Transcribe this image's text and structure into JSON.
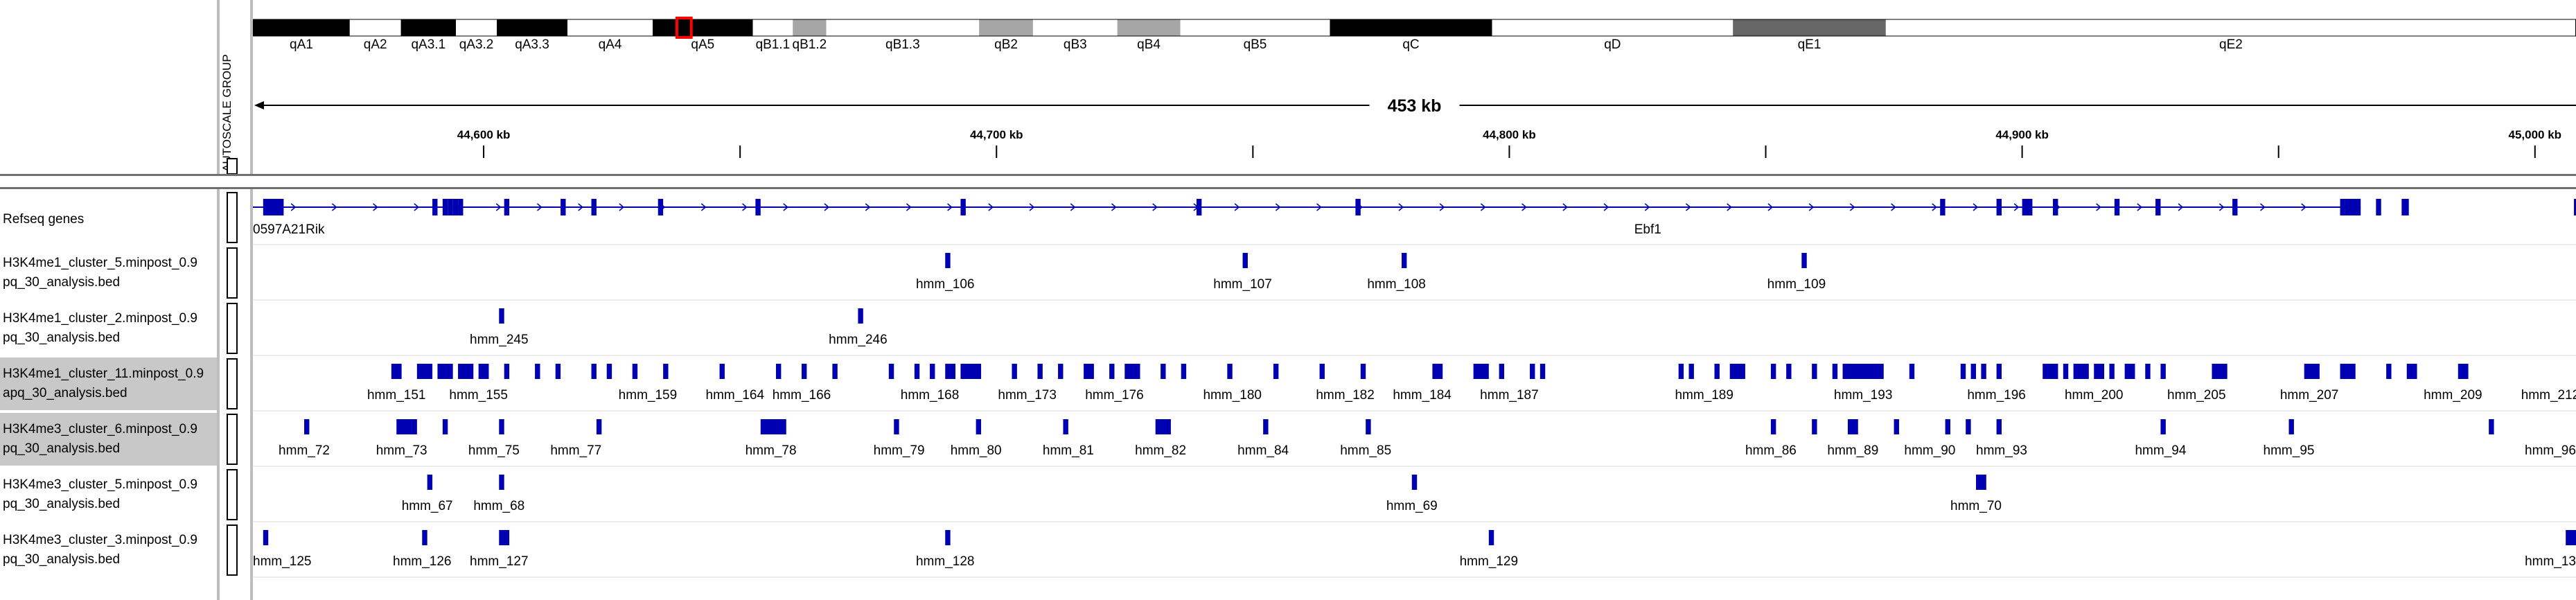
{
  "ideogram": {
    "bands": [
      {
        "name": "qA1",
        "start": 0,
        "end": 4.17,
        "stain": "black"
      },
      {
        "name": "qA2",
        "start": 4.17,
        "end": 6.37,
        "stain": "white"
      },
      {
        "name": "qA3.1",
        "start": 6.37,
        "end": 8.74,
        "stain": "black"
      },
      {
        "name": "qA3.2",
        "start": 8.74,
        "end": 10.5,
        "stain": "white"
      },
      {
        "name": "qA3.3",
        "start": 10.5,
        "end": 13.54,
        "stain": "black"
      },
      {
        "name": "qA4",
        "start": 13.54,
        "end": 17.21,
        "stain": "white"
      },
      {
        "name": "qA5",
        "start": 17.21,
        "end": 21.52,
        "stain": "black"
      },
      {
        "name": "qB1.1",
        "start": 21.52,
        "end": 23.24,
        "stain": "white"
      },
      {
        "name": "qB1.2",
        "start": 23.24,
        "end": 24.68,
        "stain": "gray"
      },
      {
        "name": "qB1.3",
        "start": 24.68,
        "end": 31.26,
        "stain": "white"
      },
      {
        "name": "qB2",
        "start": 31.26,
        "end": 33.58,
        "stain": "gray"
      },
      {
        "name": "qB3",
        "start": 33.58,
        "end": 37.21,
        "stain": "white"
      },
      {
        "name": "qB4",
        "start": 37.21,
        "end": 39.92,
        "stain": "gray"
      },
      {
        "name": "qB5",
        "start": 39.92,
        "end": 46.36,
        "stain": "white"
      },
      {
        "name": "qC",
        "start": 46.36,
        "end": 53.34,
        "stain": "black"
      },
      {
        "name": "qD",
        "start": 53.34,
        "end": 63.71,
        "stain": "white"
      },
      {
        "name": "qE1",
        "start": 63.71,
        "end": 70.29,
        "stain": "darkgray"
      },
      {
        "name": "qE2",
        "start": 70.29,
        "end": 100,
        "stain": "white"
      }
    ],
    "current_view": {
      "start": 18.25,
      "end": 18.87
    }
  },
  "ruler": {
    "span_label": "453 kb",
    "view_start_kb": 44555,
    "view_end_kb": 45008,
    "tick_labels": [
      {
        "kb": 44600,
        "label": "44,600 kb"
      },
      {
        "kb": 44700,
        "label": "44,700 kb"
      },
      {
        "kb": 44800,
        "label": "44,800 kb"
      },
      {
        "kb": 44900,
        "label": "44,900 kb"
      },
      {
        "kb": 45000,
        "label": "45,000 kb"
      }
    ],
    "minor_ticks_kb": [
      44650,
      44750,
      44850,
      44950
    ]
  },
  "attribute_header": {
    "label": "AUTOSCALE GROUP"
  },
  "tracks": [
    {
      "name": "Refseq genes",
      "type": "gene",
      "selected": false,
      "gene_labels": [
        {
          "text": "0597A21Rik",
          "pos": 0
        },
        {
          "text": "Ebf1",
          "pos": 44827
        }
      ],
      "line_start": 44555,
      "line_end": 44966,
      "exons": [
        [
          44557,
          44561
        ],
        [
          44590,
          44591
        ],
        [
          44592,
          44593
        ],
        [
          44593,
          44594
        ],
        [
          44594,
          44595
        ],
        [
          44595,
          44596
        ],
        [
          44604,
          44605
        ],
        [
          44615,
          44616
        ],
        [
          44621,
          44622
        ],
        [
          44634,
          44635
        ],
        [
          44653,
          44654
        ],
        [
          44693,
          44694
        ],
        [
          44739,
          44740
        ],
        [
          44770,
          44771
        ],
        [
          44884,
          44885
        ],
        [
          44895,
          44896
        ],
        [
          44900,
          44901
        ],
        [
          44901,
          44902
        ],
        [
          44906,
          44907
        ],
        [
          44918,
          44919
        ],
        [
          44926,
          44927
        ],
        [
          44941,
          44942
        ],
        [
          44962,
          44963
        ],
        [
          44964,
          44965
        ],
        [
          44965,
          44966
        ],
        [
          44969,
          44970
        ],
        [
          44974,
          44975
        ],
        [
          44974.6,
          44975.4
        ],
        [
          45007.6,
          45008
        ]
      ],
      "thick": [
        [
          44963,
          44966
        ]
      ]
    },
    {
      "name": "H3K4me1_cluster_5.minpost_0.9\npq_30_analysis.bed",
      "label_line1": "H3K4me1_cluster_5.minpost_0.9",
      "label_line2": "pq_30_analysis.bed",
      "type": "bed",
      "selected": false,
      "features": [
        [
          44690,
          44691
        ],
        [
          44748,
          44749
        ],
        [
          44779,
          44780
        ],
        [
          44857,
          44858
        ]
      ],
      "labels": [
        {
          "text": "hmm_106",
          "pos": 44690
        },
        {
          "text": "hmm_107",
          "pos": 44748
        },
        {
          "text": "hmm_108",
          "pos": 44778
        },
        {
          "text": "hmm_109",
          "pos": 44856
        }
      ]
    },
    {
      "name": "H3K4me1_cluster_2.minpost_0.9",
      "label_line1": "H3K4me1_cluster_2.minpost_0.9",
      "label_line2": "pq_30_analysis.bed",
      "type": "bed",
      "selected": false,
      "features": [
        [
          44603,
          44604
        ],
        [
          44673,
          44674
        ]
      ],
      "labels": [
        {
          "text": "hmm_245",
          "pos": 44603
        },
        {
          "text": "hmm_246",
          "pos": 44673
        }
      ]
    },
    {
      "name": "H3K4me1_cluster_11.minpost_0.9",
      "label_line1": "H3K4me1_cluster_11.minpost_0.9",
      "label_line2": "apq_30_analysis.bed",
      "type": "bed",
      "selected": true,
      "features": [
        [
          44582,
          44584
        ],
        [
          44587,
          44590
        ],
        [
          44591,
          44594
        ],
        [
          44595,
          44598
        ],
        [
          44599,
          44601
        ],
        [
          44604,
          44605
        ],
        [
          44610,
          44611
        ],
        [
          44614,
          44615
        ],
        [
          44621,
          44622
        ],
        [
          44624,
          44625
        ],
        [
          44629,
          44630
        ],
        [
          44635,
          44636
        ],
        [
          44646,
          44647
        ],
        [
          44657,
          44658
        ],
        [
          44662,
          44663
        ],
        [
          44668,
          44669
        ],
        [
          44679,
          44680
        ],
        [
          44684,
          44685
        ],
        [
          44687,
          44688
        ],
        [
          44690,
          44692
        ],
        [
          44693,
          44697
        ],
        [
          44703,
          44704
        ],
        [
          44708,
          44709
        ],
        [
          44712,
          44713
        ],
        [
          44717,
          44719
        ],
        [
          44722,
          44723
        ],
        [
          44725,
          44728
        ],
        [
          44732,
          44733
        ],
        [
          44736,
          44737
        ],
        [
          44745,
          44746
        ],
        [
          44754,
          44755
        ],
        [
          44763,
          44764
        ],
        [
          44771,
          44772
        ],
        [
          44785,
          44787
        ],
        [
          44793,
          44796
        ],
        [
          44798,
          44799
        ],
        [
          44804,
          44805
        ],
        [
          44806,
          44807
        ],
        [
          44833,
          44834
        ],
        [
          44835,
          44836
        ],
        [
          44840,
          44841
        ],
        [
          44843,
          44846
        ],
        [
          44851,
          44852
        ],
        [
          44854,
          44855
        ],
        [
          44859,
          44860
        ],
        [
          44863,
          44864
        ],
        [
          44865,
          44873
        ],
        [
          44878,
          44879
        ],
        [
          44888,
          44889
        ],
        [
          44890,
          44891
        ],
        [
          44892,
          44893
        ],
        [
          44895,
          44896
        ],
        [
          44904,
          44907
        ],
        [
          44908,
          44909
        ],
        [
          44910,
          44913
        ],
        [
          44914,
          44916
        ],
        [
          44917,
          44918
        ],
        [
          44920,
          44922
        ],
        [
          44924,
          44925
        ],
        [
          44927,
          44928
        ],
        [
          44937,
          44940
        ],
        [
          44955,
          44958
        ],
        [
          44962,
          44965
        ],
        [
          44971,
          44972
        ],
        [
          44975,
          44977
        ],
        [
          44985,
          44987
        ]
      ],
      "labels": [
        {
          "text": "hmm_151",
          "pos": 44583
        },
        {
          "text": "hmm_155",
          "pos": 44599
        },
        {
          "text": "hmm_159",
          "pos": 44632
        },
        {
          "text": "hmm_164",
          "pos": 44649
        },
        {
          "text": "hmm_166",
          "pos": 44662
        },
        {
          "text": "hmm_168",
          "pos": 44687
        },
        {
          "text": "hmm_173",
          "pos": 44706
        },
        {
          "text": "hmm_176",
          "pos": 44723
        },
        {
          "text": "hmm_180",
          "pos": 44746
        },
        {
          "text": "hmm_182",
          "pos": 44768
        },
        {
          "text": "hmm_184",
          "pos": 44783
        },
        {
          "text": "hmm_187",
          "pos": 44800
        },
        {
          "text": "hmm_189",
          "pos": 44838
        },
        {
          "text": "hmm_193",
          "pos": 44869
        },
        {
          "text": "hmm_196",
          "pos": 44895
        },
        {
          "text": "hmm_200",
          "pos": 44914
        },
        {
          "text": "hmm_205",
          "pos": 44934
        },
        {
          "text": "hmm_207",
          "pos": 44956
        },
        {
          "text": "hmm_209",
          "pos": 44984
        },
        {
          "text": "hmm_212",
          "pos": 45003
        }
      ]
    },
    {
      "name": "H3K4me3_cluster_6.minpost_0.9",
      "label_line1": "H3K4me3_cluster_6.minpost_0.9",
      "label_line2": "pq_30_analysis.bed",
      "type": "bed",
      "selected": true,
      "features": [
        [
          44565,
          44566
        ],
        [
          44583,
          44586
        ],
        [
          44586,
          44587
        ],
        [
          44592,
          44593
        ],
        [
          44603,
          44604
        ],
        [
          44622,
          44623
        ],
        [
          44654,
          44659
        ],
        [
          44680,
          44681
        ],
        [
          44696,
          44697
        ],
        [
          44713,
          44714
        ],
        [
          44731,
          44733
        ],
        [
          44733,
          44734
        ],
        [
          44752,
          44753
        ],
        [
          44772,
          44773
        ],
        [
          44851,
          44852
        ],
        [
          44859,
          44860
        ],
        [
          44866,
          44868
        ],
        [
          44875,
          44876
        ],
        [
          44885,
          44886
        ],
        [
          44889,
          44890
        ],
        [
          44895,
          44896
        ],
        [
          44927,
          44928
        ],
        [
          44952,
          44953
        ],
        [
          44991,
          44992
        ]
      ],
      "labels": [
        {
          "text": "hmm_72",
          "pos": 44565
        },
        {
          "text": "hmm_73",
          "pos": 44584
        },
        {
          "text": "hmm_75",
          "pos": 44602
        },
        {
          "text": "hmm_77",
          "pos": 44618
        },
        {
          "text": "hmm_78",
          "pos": 44656
        },
        {
          "text": "hmm_79",
          "pos": 44681
        },
        {
          "text": "hmm_80",
          "pos": 44696
        },
        {
          "text": "hmm_81",
          "pos": 44714
        },
        {
          "text": "hmm_82",
          "pos": 44732
        },
        {
          "text": "hmm_84",
          "pos": 44752
        },
        {
          "text": "hmm_85",
          "pos": 44772
        },
        {
          "text": "hmm_86",
          "pos": 44851
        },
        {
          "text": "hmm_89",
          "pos": 44867
        },
        {
          "text": "hmm_90",
          "pos": 44882
        },
        {
          "text": "hmm_93",
          "pos": 44896
        },
        {
          "text": "hmm_94",
          "pos": 44927
        },
        {
          "text": "hmm_95",
          "pos": 44952
        },
        {
          "text": "hmm_96",
          "pos": 45003
        }
      ]
    },
    {
      "name": "H3K4me3_cluster_5.minpost_0.9",
      "label_line1": "H3K4me3_cluster_5.minpost_0.9",
      "label_line2": "pq_30_analysis.bed",
      "type": "bed",
      "selected": false,
      "features": [
        [
          44589,
          44590
        ],
        [
          44603,
          44604
        ],
        [
          44781,
          44782
        ],
        [
          44891,
          44893
        ]
      ],
      "labels": [
        {
          "text": "hmm_67",
          "pos": 44589
        },
        {
          "text": "hmm_68",
          "pos": 44603
        },
        {
          "text": "hmm_69",
          "pos": 44781
        },
        {
          "text": "hmm_70",
          "pos": 44891
        }
      ]
    },
    {
      "name": "H3K4me3_cluster_3.minpost_0.9",
      "label_line1": "H3K4me3_cluster_3.minpost_0.9",
      "label_line2": "pq_30_analysis.bed",
      "type": "bed",
      "selected": false,
      "features": [
        [
          44557,
          44558
        ],
        [
          44588,
          44589
        ],
        [
          44603,
          44605
        ],
        [
          44690,
          44691
        ],
        [
          44796,
          44797
        ],
        [
          45006,
          45008
        ]
      ],
      "labels": [
        {
          "text": "hmm_125",
          "pos": 44557
        },
        {
          "text": "hmm_126",
          "pos": 44588
        },
        {
          "text": "hmm_127",
          "pos": 44603
        },
        {
          "text": "hmm_128",
          "pos": 44690
        },
        {
          "text": "hmm_129",
          "pos": 44796
        },
        {
          "text": "hmm_13",
          "pos": 45007
        }
      ]
    }
  ],
  "colors": {
    "feature": "#0000b2",
    "gene": "#0000b2",
    "selected_row": "#c8c8c8",
    "ideogram_black": "#000000",
    "ideogram_gray": "#a6a6a6",
    "ideogram_darkgray": "#666666",
    "view_marker": "#ff0000"
  }
}
